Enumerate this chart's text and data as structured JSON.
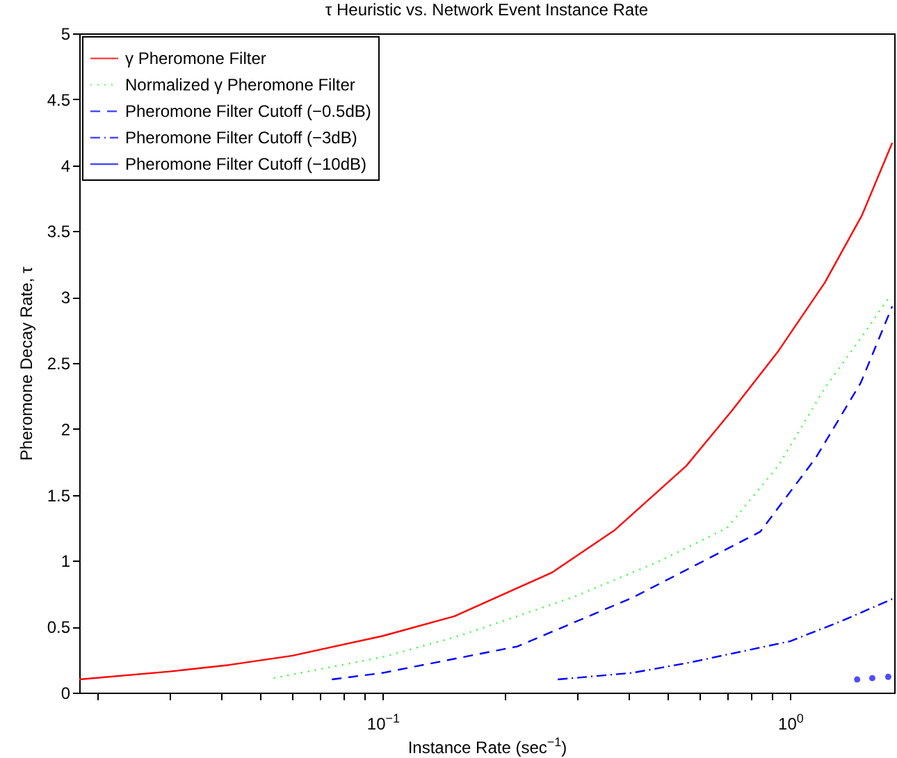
{
  "chart_data": {
    "type": "line",
    "title": "τ Heuristic vs. Network Event Instance Rate",
    "xlabel": "Instance Rate (sec$^{−1}$)",
    "ylabel": "Pheromone Decay Rate, τ",
    "log": "x",
    "grid": false,
    "legend": "top left",
    "xlim": [
      0.018,
      1.8
    ],
    "ylim": [
      0,
      5
    ],
    "xticks": [
      {
        "value": 0.02,
        "label": null
      },
      {
        "value": 0.03,
        "label": null
      },
      {
        "value": 0.04,
        "label": null
      },
      {
        "value": 0.05,
        "label": null
      },
      {
        "value": 0.06,
        "label": null
      },
      {
        "value": 0.07,
        "label": null
      },
      {
        "value": 0.08,
        "label": null
      },
      {
        "value": 0.09,
        "label": null
      },
      {
        "value": 0.1,
        "label": "10$^{−1}$"
      },
      {
        "value": 0.2,
        "label": null
      },
      {
        "value": 0.3,
        "label": null
      },
      {
        "value": 0.4,
        "label": null
      },
      {
        "value": 0.5,
        "label": null
      },
      {
        "value": 0.6,
        "label": null
      },
      {
        "value": 0.7,
        "label": null
      },
      {
        "value": 0.8,
        "label": null
      },
      {
        "value": 0.9,
        "label": null
      },
      {
        "value": 1,
        "label": "10$^{0}$"
      }
    ],
    "yticks": [
      0,
      0.5,
      1,
      1.5,
      2,
      2.5,
      3,
      3.5,
      4,
      4.5,
      5
    ],
    "series": [
      {
        "name": "γ Pheromone Filter",
        "color": "#ff0000",
        "line_style": "solid",
        "x": [
          0.018,
          0.03,
          0.042,
          0.06,
          0.1,
          0.15,
          0.26,
          0.37,
          0.556,
          0.72,
          0.935,
          1.216,
          1.5,
          1.78
        ],
        "values": [
          0.1,
          0.16,
          0.21,
          0.28,
          0.43,
          0.58,
          0.91,
          1.23,
          1.72,
          2.14,
          2.59,
          3.11,
          3.62,
          4.17
        ]
      },
      {
        "name": "Normalized γ Pheromone Filter",
        "color": "#33ff33",
        "line_style": "dotted",
        "x": [
          0.054,
          0.1,
          0.154,
          0.297,
          0.48,
          0.7,
          0.935,
          1.216,
          1.5,
          1.75
        ],
        "values": [
          0.11,
          0.27,
          0.43,
          0.73,
          1.0,
          1.25,
          1.72,
          2.31,
          2.7,
          3.0
        ]
      },
      {
        "name": "Pheromone Filter Cutoff (−0.5dB)",
        "color": "#0000ff",
        "line_style": "dashed",
        "x": [
          0.075,
          0.1,
          0.214,
          0.41,
          0.844,
          1.155,
          1.49,
          1.78
        ],
        "values": [
          0.1,
          0.15,
          0.35,
          0.72,
          1.22,
          1.78,
          2.35,
          2.93
        ]
      },
      {
        "name": "Pheromone Filter Cutoff (−3dB)",
        "color": "#0000ff",
        "line_style": "dashdot",
        "x": [
          0.269,
          0.41,
          0.57,
          1.0,
          1.33,
          1.78
        ],
        "values": [
          0.1,
          0.15,
          0.23,
          0.39,
          0.54,
          0.71
        ]
      },
      {
        "name": "Pheromone Filter Cutoff (−10dB)",
        "type": "scatter",
        "marker": "circle",
        "color": "#0000ff",
        "x": [
          1.46,
          1.59,
          1.74
        ],
        "values": [
          0.1,
          0.11,
          0.12
        ]
      }
    ]
  }
}
